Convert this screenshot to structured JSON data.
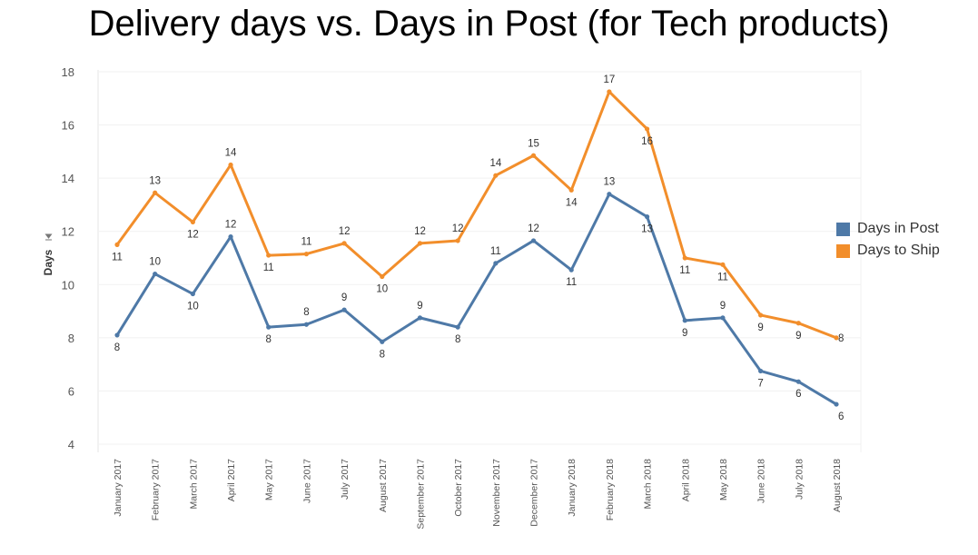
{
  "title": "Delivery days vs. Days in Post (for Tech products)",
  "chart_data": {
    "type": "line",
    "title": "Delivery days vs. Days in Post (for Tech products)",
    "ylabel": "Days",
    "xlabel": "",
    "ylim": [
      4,
      18
    ],
    "yticks": [
      4,
      6,
      8,
      10,
      12,
      14,
      16,
      18
    ],
    "grid": true,
    "legend": "right",
    "categories": [
      "January 2017",
      "February 2017",
      "March 2017",
      "April 2017",
      "May 2017",
      "June 2017",
      "July 2017",
      "August 2017",
      "September 2017",
      "October 2017",
      "November 2017",
      "December 2017",
      "January 2018",
      "February 2018",
      "March 2018",
      "April 2018",
      "May 2018",
      "June 2018",
      "July 2018",
      "August 2018"
    ],
    "series": [
      {
        "name": "Days in Post",
        "color": "#4e79a7",
        "values": [
          8.1,
          10.4,
          9.65,
          11.8,
          8.4,
          8.5,
          9.05,
          7.85,
          8.75,
          8.4,
          10.8,
          11.65,
          10.55,
          13.4,
          12.55,
          8.65,
          8.75,
          6.75,
          6.35,
          5.5
        ],
        "labels": [
          "8",
          "10",
          "10",
          "12",
          "8",
          "8",
          "9",
          "8",
          "9",
          "8",
          "11",
          "12",
          "11",
          "13",
          "13",
          "9",
          "9",
          "7",
          "6",
          "6"
        ]
      },
      {
        "name": "Days to Ship",
        "color": "#f28e2b",
        "values": [
          11.5,
          13.45,
          12.35,
          14.5,
          11.1,
          11.15,
          11.55,
          10.3,
          11.55,
          11.65,
          14.1,
          14.85,
          13.55,
          17.25,
          15.85,
          11.0,
          10.75,
          8.85,
          8.55,
          8.0
        ],
        "labels": [
          "11",
          "13",
          "12",
          "14",
          "11",
          "11",
          "12",
          "10",
          "12",
          "12",
          "14",
          "15",
          "14",
          "17",
          "16",
          "11",
          "11",
          "9",
          "9",
          "8"
        ]
      }
    ]
  }
}
